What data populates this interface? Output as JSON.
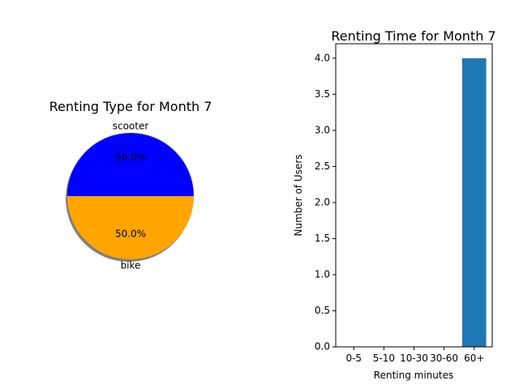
{
  "chart_data": [
    {
      "type": "pie",
      "title": "Renting Type for Month 7",
      "slices": [
        {
          "label": "scooter",
          "value": 50.0,
          "pct_label": "50.0%",
          "color": "#0000ff"
        },
        {
          "label": "bike",
          "value": 50.0,
          "pct_label": "50.0%",
          "color": "#ffa500"
        }
      ],
      "shadow": true
    },
    {
      "type": "bar",
      "title": "Renting Time for Month 7",
      "xlabel": "Renting minutes",
      "ylabel": "Number of Users",
      "categories": [
        "0-5",
        "5-10",
        "10-30",
        "30-60",
        "60+"
      ],
      "values": [
        0,
        0,
        0,
        0,
        4
      ],
      "ylim": [
        0,
        4.2
      ],
      "yticks": [
        "0.0",
        "0.5",
        "1.0",
        "1.5",
        "2.0",
        "2.5",
        "3.0",
        "3.5",
        "4.0"
      ],
      "bar_color": "#1f77b4",
      "grid": false
    }
  ]
}
